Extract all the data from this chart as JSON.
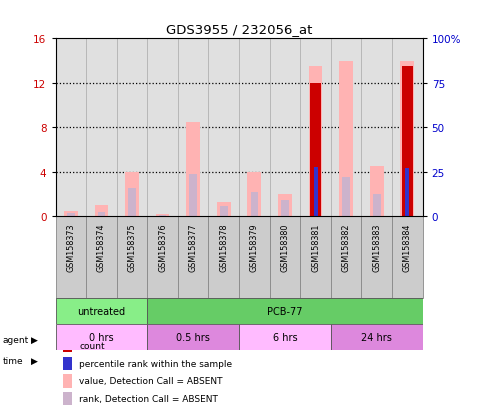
{
  "title": "GDS3955 / 232056_at",
  "samples": [
    "GSM158373",
    "GSM158374",
    "GSM158375",
    "GSM158376",
    "GSM158377",
    "GSM158378",
    "GSM158379",
    "GSM158380",
    "GSM158381",
    "GSM158382",
    "GSM158383",
    "GSM158384"
  ],
  "value_absent": [
    0.5,
    1.0,
    4.0,
    0.2,
    8.5,
    1.3,
    4.0,
    2.0,
    13.5,
    14.0,
    4.5,
    14.0
  ],
  "rank_absent": [
    0.3,
    0.4,
    2.5,
    0.15,
    3.8,
    0.9,
    2.2,
    1.5,
    3.8,
    3.5,
    2.0,
    3.9
  ],
  "count": [
    0.0,
    0.0,
    0.0,
    0.0,
    0.0,
    0.0,
    0.0,
    0.0,
    12.0,
    0.0,
    0.0,
    13.5
  ],
  "percentile": [
    0.0,
    0.0,
    0.0,
    0.0,
    0.0,
    0.0,
    0.0,
    0.0,
    4.4,
    0.0,
    0.0,
    4.3
  ],
  "ylim": [
    0,
    16
  ],
  "yticks_left": [
    0,
    4,
    8,
    12,
    16
  ],
  "yticks_right": [
    0,
    25,
    50,
    75,
    100
  ],
  "yticklabels_right": [
    "0",
    "25",
    "50",
    "75",
    "100%"
  ],
  "color_count": "#cc0000",
  "color_percentile": "#3333cc",
  "color_value_absent": "#ffb3b3",
  "color_rank_absent": "#ccb3cc",
  "agent_untreated_color": "#88ee88",
  "agent_pcb77_color": "#66cc66",
  "time_colors": [
    "#ffbbff",
    "#dd88dd",
    "#ffbbff",
    "#dd88dd"
  ],
  "time_labels": [
    "0 hrs",
    "0.5 hrs",
    "6 hrs",
    "24 hrs"
  ],
  "time_starts": [
    0,
    3,
    6,
    9
  ],
  "time_ends": [
    3,
    6,
    9,
    12
  ],
  "legend_items": [
    {
      "color": "#cc0000",
      "label": "count"
    },
    {
      "color": "#3333cc",
      "label": "percentile rank within the sample"
    },
    {
      "color": "#ffb3b3",
      "label": "value, Detection Call = ABSENT"
    },
    {
      "color": "#ccb3cc",
      "label": "rank, Detection Call = ABSENT"
    }
  ],
  "left_axis_color": "#cc0000",
  "right_axis_color": "#0000cc",
  "sample_box_color": "#cccccc",
  "sample_box_edge": "#888888"
}
